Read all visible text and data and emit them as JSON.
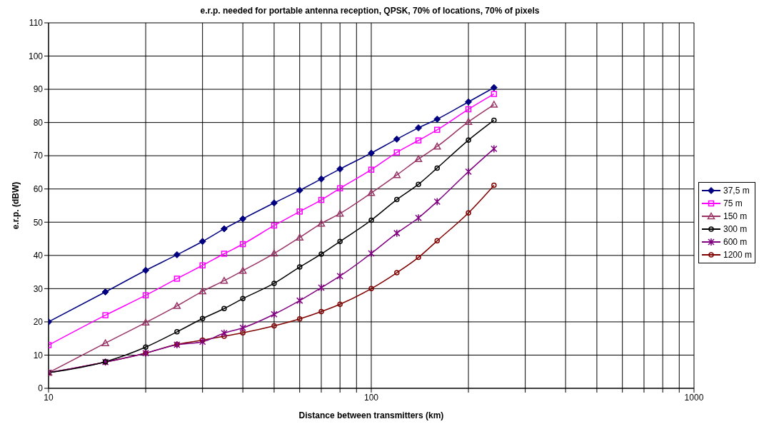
{
  "chart_data": {
    "type": "line",
    "title": "e.r.p. needed for portable antenna reception, QPSK, 70% of locations, 70% of pixels",
    "xlabel": "Distance between transmitters (km)",
    "ylabel": "e.r.p. (dBW)",
    "log": "x",
    "x": [
      10,
      15,
      20,
      25,
      30,
      35,
      40,
      50,
      60,
      70,
      80,
      100,
      120,
      140,
      160,
      200,
      240
    ],
    "xlim": [
      10,
      1000
    ],
    "xticks": [
      10,
      {
        "value": 20,
        "label": null
      },
      {
        "value": 30,
        "label": null
      },
      {
        "value": 40,
        "label": null
      },
      {
        "value": 50,
        "label": null
      },
      {
        "value": 60,
        "label": null
      },
      {
        "value": 70,
        "label": null
      },
      {
        "value": 80,
        "label": null
      },
      {
        "value": 90,
        "label": null
      },
      100,
      {
        "value": 200,
        "label": null
      },
      {
        "value": 300,
        "label": null
      },
      {
        "value": 400,
        "label": null
      },
      {
        "value": 500,
        "label": null
      },
      {
        "value": 600,
        "label": null
      },
      {
        "value": 700,
        "label": null
      },
      {
        "value": 800,
        "label": null
      },
      {
        "value": 900,
        "label": null
      },
      1000
    ],
    "ylim": [
      0,
      110
    ],
    "yticks": [
      0,
      10,
      20,
      30,
      40,
      50,
      60,
      70,
      80,
      90,
      100,
      110
    ],
    "grid": true,
    "legend": "right",
    "line_style": "solid",
    "series": [
      {
        "name": "37,5 m",
        "color": "#000080",
        "marker": "diamond",
        "values": [
          20,
          29,
          35.5,
          40.2,
          44.2,
          48,
          51,
          55.8,
          59.6,
          63,
          66,
          70.8,
          75,
          78.4,
          81,
          86.2,
          90.5
        ]
      },
      {
        "name": "75 m",
        "color": "#ff00ff",
        "marker": "square",
        "values": [
          13,
          22,
          28,
          33,
          37,
          40.5,
          43.4,
          49,
          53.2,
          56.7,
          60.2,
          65.8,
          71,
          74.6,
          77.8,
          84,
          88.6
        ]
      },
      {
        "name": "150 m",
        "color": "#993366",
        "marker": "triangle",
        "values": [
          4.7,
          13.6,
          19.8,
          24.8,
          29.2,
          32.4,
          35.4,
          40.6,
          45.4,
          49.6,
          52.6,
          58.8,
          64.2,
          69,
          72.8,
          80.2,
          85.4
        ]
      },
      {
        "name": "300 m",
        "color": "#000000",
        "marker": "circle",
        "values": [
          4.7,
          8,
          12.4,
          17,
          21,
          24,
          27,
          31.6,
          36.5,
          40.4,
          44.2,
          50.6,
          56.8,
          61.4,
          66.3,
          74.7,
          80.7
        ]
      },
      {
        "name": "600 m",
        "color": "#800080",
        "marker": "cross",
        "values": [
          4.7,
          7.9,
          10.6,
          13.1,
          14,
          16.6,
          18.2,
          22.3,
          26.4,
          30.3,
          33.8,
          40.6,
          46.7,
          51.3,
          56.2,
          65.2,
          72.1
        ]
      },
      {
        "name": "1200 m",
        "color": "#800000",
        "marker": "circle",
        "values": [
          4.7,
          7.9,
          10.6,
          13.2,
          14.5,
          15.7,
          16.7,
          18.8,
          20.9,
          23.1,
          25.3,
          30,
          34.8,
          39.4,
          44.4,
          52.8,
          61.1
        ]
      }
    ]
  }
}
